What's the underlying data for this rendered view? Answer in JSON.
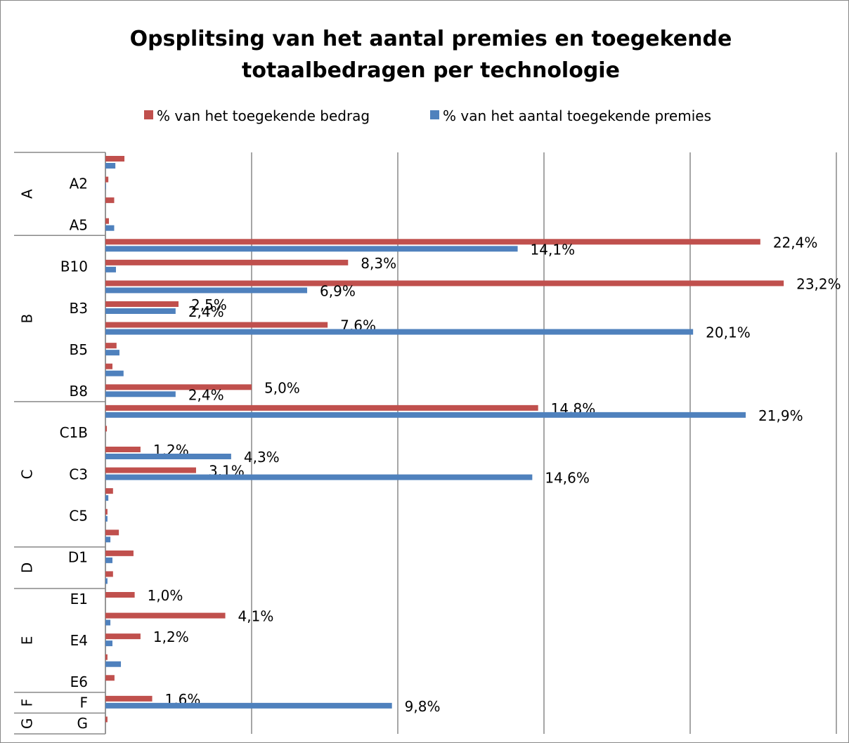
{
  "chart_data": {
    "type": "bar",
    "orientation": "horizontal",
    "title": [
      "Opsplitsing van het aantal premies en toegekende",
      "totaalbedragen per technologie"
    ],
    "categories": [
      null,
      "A2",
      null,
      "A5",
      null,
      "B10",
      null,
      "B3",
      null,
      "B5",
      null,
      "B8",
      null,
      "C1B",
      null,
      "C3",
      null,
      "C5",
      null,
      "D1",
      null,
      "E1",
      null,
      "E4",
      null,
      "E6",
      "F",
      "G"
    ],
    "groups": [
      {
        "label": "A",
        "size": 4
      },
      {
        "label": "B",
        "size": 8
      },
      {
        "label": "C",
        "size": 7
      },
      {
        "label": "D",
        "size": 2
      },
      {
        "label": "E",
        "size": 5
      },
      {
        "label": "F",
        "size": 1
      },
      {
        "label": "G",
        "size": 1
      }
    ],
    "series": [
      {
        "name": "% van het toegekende bedrag",
        "color": "#c0504d",
        "values": [
          0.65,
          0.1,
          0.3,
          0.12,
          22.4,
          8.3,
          23.2,
          2.5,
          7.6,
          0.38,
          0.24,
          5.0,
          14.8,
          0.05,
          1.2,
          3.1,
          0.26,
          0.07,
          0.46,
          0.96,
          0.26,
          1.0,
          4.1,
          1.2,
          0.07,
          0.31,
          1.6,
          0.07
        ],
        "value_labels": [
          null,
          null,
          null,
          null,
          "22,4%",
          "8,3%",
          "23,2%",
          "2,5%",
          "7,6%",
          null,
          null,
          "5,0%",
          "14,8%",
          null,
          "1,2%",
          "3,1%",
          null,
          null,
          null,
          null,
          null,
          "1,0%",
          "4,1%",
          "1,2%",
          null,
          null,
          "1,6%",
          null
        ]
      },
      {
        "name": "% van het aantal toegekende premies",
        "color": "#4f81bd",
        "values": [
          0.34,
          0.02,
          0,
          0.3,
          14.1,
          0.36,
          6.9,
          2.4,
          20.1,
          0.48,
          0.62,
          2.4,
          21.9,
          0,
          4.3,
          14.6,
          0.1,
          0.07,
          0.17,
          0.24,
          0.07,
          0,
          0.17,
          0.24,
          0.53,
          0,
          9.8,
          0
        ],
        "value_labels": [
          null,
          null,
          null,
          null,
          "14,1%",
          null,
          "6,9%",
          "2,4%",
          "20,1%",
          null,
          null,
          "2,4%",
          "21,9%",
          null,
          "4,3%",
          "14,6%",
          null,
          null,
          null,
          null,
          null,
          null,
          null,
          null,
          null,
          null,
          "9,8%",
          null
        ]
      }
    ],
    "xlim": [
      0,
      25
    ],
    "xticks": [
      0,
      5,
      10,
      15,
      20,
      25
    ],
    "grid": true,
    "legend": "top"
  }
}
